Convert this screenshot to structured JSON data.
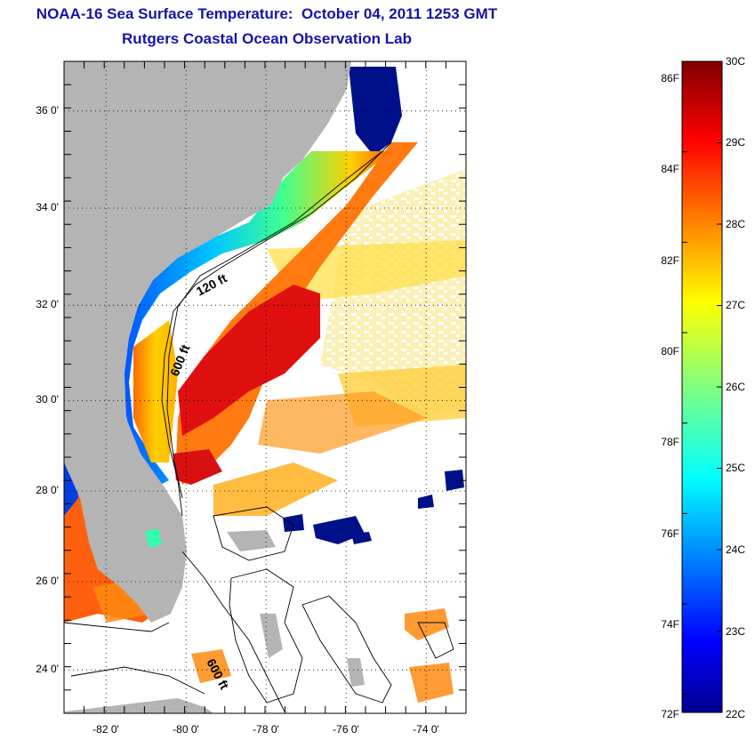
{
  "title": "NOAA-16 Sea Surface Temperature:  October 04, 2011 1253 GMT",
  "subtitle": "Rutgers Coastal Ocean Observation Lab",
  "map": {
    "lat_range": [
      23,
      37
    ],
    "lon_range": [
      -83,
      -73
    ],
    "lat_ticks": [
      "36 0'",
      "34 0'",
      "32 0'",
      "30 0'",
      "28 0'",
      "26 0'",
      "24 0'"
    ],
    "lon_ticks": [
      "-82 0'",
      "-80 0'",
      "-78 0'",
      "-76 0'",
      "-74 0'"
    ],
    "contour_labels": [
      "120 ft",
      "600 ft",
      "600 ft"
    ],
    "land_color": "#b4b4b4",
    "grid": "dotted"
  },
  "colorbar": {
    "colormap": "jet",
    "celsius_range": [
      22,
      30
    ],
    "fahrenheit_labels": [
      "86F",
      "84F",
      "82F",
      "80F",
      "78F",
      "76F",
      "74F",
      "72F"
    ],
    "celsius_labels": [
      "30C",
      "29C",
      "28C",
      "27C",
      "26C",
      "25C",
      "24C",
      "23C",
      "22C"
    ]
  }
}
